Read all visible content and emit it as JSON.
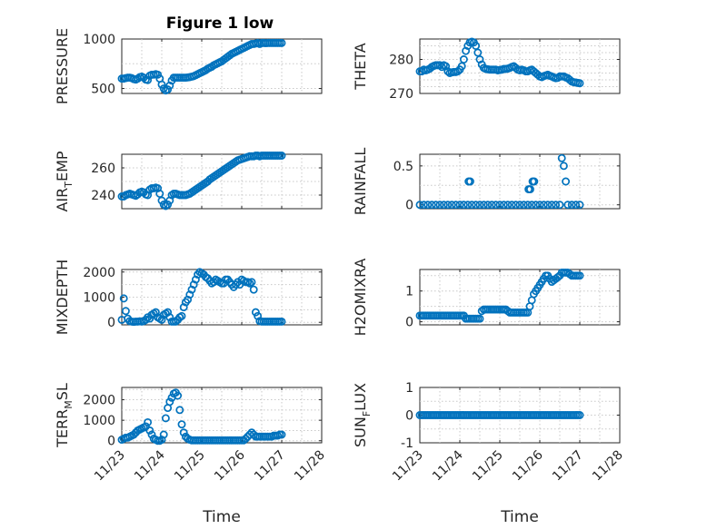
{
  "title": "Figure 1 low",
  "marker_color": "#0072BD",
  "chart_data": [
    {
      "type": "scatter",
      "ylabel": "PRESSURE",
      "title": "Figure 1 low",
      "ylim": [
        450,
        1000
      ],
      "yticks": [
        500,
        1000
      ],
      "ytick_labels": [
        "500",
        "1000"
      ],
      "grid": true,
      "x": [
        0.0,
        0.05,
        0.1,
        0.15,
        0.2,
        0.25,
        0.3,
        0.35,
        0.4,
        0.45,
        0.5,
        0.55,
        0.6,
        0.65,
        0.7,
        0.75,
        0.8,
        0.85,
        0.9,
        0.95,
        1.0,
        1.05,
        1.1,
        1.15,
        1.2,
        1.25,
        1.3,
        1.35,
        1.4,
        1.45,
        1.5,
        1.55,
        1.6,
        1.65,
        1.7,
        1.75,
        1.8,
        1.85,
        1.9,
        1.95,
        2.0,
        2.05,
        2.1,
        2.15,
        2.2,
        2.25,
        2.3,
        2.35,
        2.4,
        2.45,
        2.5,
        2.55,
        2.6,
        2.65,
        2.7,
        2.75,
        2.8,
        2.85,
        2.9,
        2.95,
        3.0,
        3.05,
        3.1,
        3.15,
        3.2,
        3.25,
        3.3,
        3.35,
        3.4,
        3.45,
        3.5,
        3.55,
        3.6,
        3.65,
        3.7,
        3.75,
        3.8,
        3.85,
        3.9,
        3.95,
        4.0
      ],
      "y": [
        600,
        600,
        605,
        610,
        610,
        605,
        595,
        590,
        600,
        615,
        620,
        610,
        590,
        585,
        630,
        640,
        640,
        645,
        640,
        600,
        540,
        500,
        480,
        490,
        530,
        580,
        610,
        610,
        610,
        610,
        610,
        610,
        610,
        612,
        615,
        620,
        625,
        635,
        645,
        655,
        665,
        675,
        685,
        700,
        710,
        720,
        735,
        745,
        755,
        765,
        775,
        790,
        805,
        820,
        835,
        850,
        860,
        870,
        880,
        890,
        900,
        910,
        920,
        930,
        940,
        950,
        950,
        955,
        960,
        950,
        960,
        960,
        958,
        960,
        960,
        960,
        960,
        960,
        960,
        960,
        960
      ]
    },
    {
      "type": "scatter",
      "ylabel": "THETA",
      "ylim": [
        270,
        286
      ],
      "yticks": [
        270,
        280
      ],
      "ytick_labels": [
        "270",
        "280"
      ],
      "grid": true,
      "x": [
        0.0,
        0.05,
        0.1,
        0.15,
        0.2,
        0.25,
        0.3,
        0.35,
        0.4,
        0.45,
        0.5,
        0.55,
        0.6,
        0.65,
        0.7,
        0.75,
        0.8,
        0.85,
        0.9,
        0.95,
        1.0,
        1.05,
        1.1,
        1.15,
        1.2,
        1.25,
        1.3,
        1.35,
        1.4,
        1.45,
        1.5,
        1.55,
        1.6,
        1.65,
        1.7,
        1.75,
        1.8,
        1.85,
        1.9,
        1.95,
        2.0,
        2.05,
        2.1,
        2.15,
        2.2,
        2.25,
        2.3,
        2.35,
        2.4,
        2.45,
        2.5,
        2.55,
        2.6,
        2.65,
        2.7,
        2.75,
        2.8,
        2.85,
        2.9,
        2.95,
        3.0,
        3.05,
        3.1,
        3.15,
        3.2,
        3.25,
        3.3,
        3.35,
        3.4,
        3.45,
        3.5,
        3.55,
        3.6,
        3.65,
        3.7,
        3.75,
        3.8,
        3.85,
        3.9,
        3.95,
        4.0
      ],
      "y": [
        276.5,
        276.5,
        277,
        276.8,
        277,
        277.3,
        277.8,
        278.1,
        278.3,
        278.3,
        278.3,
        277.8,
        278.3,
        278,
        276.5,
        276,
        276.2,
        276.3,
        276.3,
        276.5,
        277,
        278,
        280,
        282.5,
        284,
        285,
        285.2,
        285,
        284,
        282,
        280,
        278.5,
        277.5,
        277.2,
        277.1,
        277,
        277,
        277,
        277,
        276.8,
        276.9,
        277,
        277.2,
        277.2,
        277.3,
        277.5,
        277.8,
        278,
        277.5,
        277,
        276.8,
        277,
        276.8,
        276.5,
        276.5,
        276.8,
        277,
        276.5,
        276,
        275.5,
        275,
        274.8,
        275.1,
        275.3,
        275.5,
        275.2,
        275,
        274.7,
        274.5,
        274.6,
        275,
        275,
        275,
        274.7,
        274.5,
        274,
        273.5,
        273.3,
        273.2,
        273.1,
        273
      ]
    },
    {
      "type": "scatter",
      "ylabel": "AIR_TEMP",
      "ylabel_main": "AIR",
      "ylabel_sub": "T",
      "ylabel_rest": "EMP",
      "ylim": [
        230,
        270
      ],
      "yticks": [
        240,
        260
      ],
      "ytick_labels": [
        "240",
        "260"
      ],
      "grid": true,
      "x": [
        0.0,
        0.05,
        0.1,
        0.15,
        0.2,
        0.25,
        0.3,
        0.35,
        0.4,
        0.45,
        0.5,
        0.55,
        0.6,
        0.65,
        0.7,
        0.75,
        0.8,
        0.85,
        0.9,
        0.95,
        1.0,
        1.05,
        1.1,
        1.15,
        1.2,
        1.25,
        1.3,
        1.35,
        1.4,
        1.45,
        1.5,
        1.55,
        1.6,
        1.65,
        1.7,
        1.75,
        1.8,
        1.85,
        1.9,
        1.95,
        2.0,
        2.05,
        2.1,
        2.15,
        2.2,
        2.25,
        2.3,
        2.35,
        2.4,
        2.45,
        2.5,
        2.55,
        2.6,
        2.65,
        2.7,
        2.75,
        2.8,
        2.85,
        2.9,
        2.95,
        3.0,
        3.05,
        3.1,
        3.15,
        3.2,
        3.25,
        3.3,
        3.35,
        3.4,
        3.45,
        3.5,
        3.55,
        3.6,
        3.65,
        3.7,
        3.75,
        3.8,
        3.85,
        3.9,
        3.95,
        4.0
      ],
      "y": [
        239,
        239,
        240,
        240.5,
        241,
        240.5,
        240,
        239.5,
        240.5,
        242,
        242.5,
        242,
        240.5,
        240,
        244,
        245,
        245,
        245.5,
        245,
        241,
        236,
        233,
        232,
        233,
        236,
        240,
        241,
        241,
        240.5,
        240,
        240,
        240,
        240,
        240.5,
        241,
        242,
        243,
        244,
        245,
        246,
        247,
        248,
        249,
        250,
        251.5,
        252.5,
        253.5,
        254.5,
        255.5,
        256.5,
        257.5,
        258.5,
        259.5,
        260.5,
        261.5,
        262.5,
        263.5,
        264.5,
        265.5,
        266,
        266.5,
        267,
        267.5,
        268,
        268.5,
        268.5,
        268.5,
        269,
        269,
        268.5,
        269,
        269,
        269,
        269,
        269,
        269,
        269,
        269,
        269,
        269,
        269
      ]
    },
    {
      "type": "scatter",
      "ylabel": "RAINFALL",
      "ylim": [
        -0.05,
        0.65
      ],
      "yticks": [
        0,
        0.5
      ],
      "ytick_labels": [
        "0",
        "0.5"
      ],
      "grid": true,
      "x": [
        0.0,
        0.1,
        0.2,
        0.3,
        0.4,
        0.5,
        0.6,
        0.7,
        0.8,
        0.9,
        1.0,
        1.1,
        1.2,
        1.22,
        1.26,
        1.3,
        1.4,
        1.5,
        1.6,
        1.7,
        1.8,
        1.9,
        2.0,
        2.1,
        2.2,
        2.3,
        2.4,
        2.5,
        2.6,
        2.7,
        2.72,
        2.76,
        2.8,
        2.82,
        2.86,
        2.9,
        3.0,
        3.1,
        3.2,
        3.3,
        3.4,
        3.5,
        3.55,
        3.6,
        3.65,
        3.7,
        3.8,
        3.9,
        4.0
      ],
      "y": [
        0,
        0,
        0,
        0,
        0,
        0,
        0,
        0,
        0,
        0,
        0,
        0,
        0,
        0.3,
        0.3,
        0,
        0,
        0,
        0,
        0,
        0,
        0,
        0,
        0,
        0,
        0,
        0,
        0,
        0,
        0,
        0.2,
        0.2,
        0,
        0.3,
        0.3,
        0,
        0,
        0,
        0,
        0,
        0,
        0,
        0.6,
        0.5,
        0.3,
        0,
        0,
        0,
        0
      ]
    },
    {
      "type": "scatter",
      "ylabel": "MIXDEPTH",
      "ylim": [
        -100,
        2100
      ],
      "yticks": [
        0,
        1000,
        2000
      ],
      "ytick_labels": [
        "0",
        "1000",
        "2000"
      ],
      "grid": true,
      "x": [
        0.0,
        0.05,
        0.1,
        0.15,
        0.2,
        0.25,
        0.3,
        0.35,
        0.4,
        0.45,
        0.5,
        0.55,
        0.6,
        0.65,
        0.7,
        0.75,
        0.8,
        0.85,
        0.9,
        0.95,
        1.0,
        1.05,
        1.1,
        1.15,
        1.2,
        1.25,
        1.3,
        1.35,
        1.4,
        1.45,
        1.5,
        1.55,
        1.6,
        1.65,
        1.7,
        1.75,
        1.8,
        1.85,
        1.9,
        1.95,
        2.0,
        2.05,
        2.1,
        2.15,
        2.2,
        2.25,
        2.3,
        2.35,
        2.4,
        2.45,
        2.5,
        2.55,
        2.6,
        2.65,
        2.7,
        2.75,
        2.8,
        2.85,
        2.9,
        2.95,
        3.0,
        3.05,
        3.1,
        3.15,
        3.2,
        3.25,
        3.3,
        3.35,
        3.4,
        3.45,
        3.5,
        3.55,
        3.6,
        3.65,
        3.7,
        3.75,
        3.8,
        3.85,
        3.9,
        3.95,
        4.0
      ],
      "y": [
        100,
        950,
        450,
        150,
        50,
        30,
        20,
        30,
        30,
        40,
        30,
        50,
        100,
        200,
        150,
        300,
        350,
        400,
        200,
        150,
        100,
        300,
        350,
        400,
        200,
        30,
        30,
        30,
        100,
        200,
        250,
        600,
        800,
        900,
        1100,
        1300,
        1500,
        1700,
        1900,
        2000,
        1950,
        1900,
        1800,
        1750,
        1650,
        1550,
        1600,
        1700,
        1650,
        1600,
        1550,
        1550,
        1700,
        1700,
        1600,
        1500,
        1400,
        1500,
        1600,
        1500,
        1700,
        1650,
        1600,
        1600,
        1550,
        1600,
        1300,
        400,
        250,
        50,
        30,
        30,
        30,
        30,
        30,
        30,
        30,
        30,
        30,
        30,
        30
      ]
    },
    {
      "type": "scatter",
      "ylabel": "H2OMIXRA",
      "ylim": [
        -0.1,
        1.7
      ],
      "yticks": [
        0,
        1
      ],
      "ytick_labels": [
        "0",
        "1"
      ],
      "grid": true,
      "x": [
        0.0,
        0.05,
        0.1,
        0.15,
        0.2,
        0.25,
        0.3,
        0.35,
        0.4,
        0.45,
        0.5,
        0.55,
        0.6,
        0.65,
        0.7,
        0.75,
        0.8,
        0.85,
        0.9,
        0.95,
        1.0,
        1.05,
        1.1,
        1.15,
        1.2,
        1.25,
        1.3,
        1.35,
        1.4,
        1.45,
        1.5,
        1.55,
        1.6,
        1.65,
        1.7,
        1.75,
        1.8,
        1.85,
        1.9,
        1.95,
        2.0,
        2.05,
        2.1,
        2.15,
        2.2,
        2.25,
        2.3,
        2.35,
        2.4,
        2.45,
        2.5,
        2.55,
        2.6,
        2.65,
        2.7,
        2.75,
        2.8,
        2.85,
        2.9,
        2.95,
        3.0,
        3.05,
        3.1,
        3.15,
        3.2,
        3.25,
        3.3,
        3.35,
        3.4,
        3.45,
        3.5,
        3.55,
        3.6,
        3.65,
        3.7,
        3.75,
        3.8,
        3.85,
        3.9,
        3.95,
        4.0
      ],
      "y": [
        0.2,
        0.2,
        0.2,
        0.2,
        0.2,
        0.2,
        0.2,
        0.2,
        0.2,
        0.2,
        0.2,
        0.2,
        0.2,
        0.2,
        0.2,
        0.2,
        0.2,
        0.2,
        0.2,
        0.2,
        0.2,
        0.2,
        0.2,
        0.1,
        0.1,
        0.1,
        0.1,
        0.1,
        0.1,
        0.1,
        0.1,
        0.35,
        0.4,
        0.4,
        0.4,
        0.4,
        0.4,
        0.4,
        0.4,
        0.4,
        0.4,
        0.4,
        0.4,
        0.4,
        0.35,
        0.3,
        0.3,
        0.3,
        0.3,
        0.3,
        0.3,
        0.3,
        0.3,
        0.3,
        0.3,
        0.5,
        0.7,
        0.9,
        1.0,
        1.1,
        1.2,
        1.3,
        1.4,
        1.5,
        1.5,
        1.4,
        1.3,
        1.35,
        1.4,
        1.45,
        1.5,
        1.6,
        1.6,
        1.6,
        1.6,
        1.55,
        1.5,
        1.5,
        1.5,
        1.5,
        1.5
      ]
    },
    {
      "type": "scatter",
      "ylabel": "TERR_MSL",
      "ylabel_main": "TERR",
      "ylabel_sub": "M",
      "ylabel_rest": "SL",
      "ylim": [
        -100,
        2600
      ],
      "yticks": [
        0,
        1000,
        2000
      ],
      "ytick_labels": [
        "0",
        "1000",
        "2000"
      ],
      "grid": true,
      "x": [
        0.0,
        0.05,
        0.1,
        0.15,
        0.2,
        0.25,
        0.3,
        0.35,
        0.4,
        0.45,
        0.5,
        0.55,
        0.6,
        0.65,
        0.7,
        0.75,
        0.8,
        0.85,
        0.9,
        0.95,
        1.0,
        1.05,
        1.1,
        1.15,
        1.2,
        1.25,
        1.3,
        1.35,
        1.4,
        1.45,
        1.5,
        1.55,
        1.6,
        1.65,
        1.7,
        1.75,
        1.8,
        1.85,
        1.9,
        1.95,
        2.0,
        2.05,
        2.1,
        2.15,
        2.2,
        2.25,
        2.3,
        2.35,
        2.4,
        2.45,
        2.5,
        2.55,
        2.6,
        2.65,
        2.7,
        2.75,
        2.8,
        2.85,
        2.9,
        2.95,
        3.0,
        3.05,
        3.1,
        3.15,
        3.2,
        3.25,
        3.3,
        3.35,
        3.4,
        3.45,
        3.5,
        3.55,
        3.6,
        3.65,
        3.7,
        3.75,
        3.8,
        3.85,
        3.9,
        3.95,
        4.0
      ],
      "y": [
        50,
        100,
        150,
        150,
        200,
        250,
        300,
        400,
        500,
        550,
        600,
        650,
        700,
        900,
        500,
        300,
        100,
        50,
        0,
        0,
        50,
        300,
        1100,
        1600,
        1900,
        2100,
        2300,
        2350,
        2200,
        1500,
        800,
        400,
        200,
        100,
        50,
        20,
        20,
        20,
        20,
        20,
        20,
        20,
        20,
        20,
        20,
        20,
        20,
        20,
        20,
        20,
        20,
        20,
        20,
        20,
        20,
        20,
        20,
        20,
        20,
        20,
        20,
        20,
        100,
        200,
        300,
        400,
        300,
        200,
        200,
        200,
        200,
        200,
        200,
        200,
        200,
        200,
        250,
        250,
        250,
        300,
        300
      ]
    },
    {
      "type": "scatter",
      "ylabel": "SUN_FLUX",
      "ylabel_main": "SUN",
      "ylabel_sub": "F",
      "ylabel_rest": "LUX",
      "ylim": [
        -1,
        1
      ],
      "yticks": [
        -1,
        0,
        1
      ],
      "ytick_labels": [
        "-1",
        "0",
        "1"
      ],
      "grid": true,
      "x": [
        0.0,
        0.05,
        0.1,
        0.15,
        0.2,
        0.25,
        0.3,
        0.35,
        0.4,
        0.45,
        0.5,
        0.55,
        0.6,
        0.65,
        0.7,
        0.75,
        0.8,
        0.85,
        0.9,
        0.95,
        1.0,
        1.05,
        1.1,
        1.15,
        1.2,
        1.25,
        1.3,
        1.35,
        1.4,
        1.45,
        1.5,
        1.55,
        1.6,
        1.65,
        1.7,
        1.75,
        1.8,
        1.85,
        1.9,
        1.95,
        2.0,
        2.05,
        2.1,
        2.15,
        2.2,
        2.25,
        2.3,
        2.35,
        2.4,
        2.45,
        2.5,
        2.55,
        2.6,
        2.65,
        2.7,
        2.75,
        2.8,
        2.85,
        2.9,
        2.95,
        3.0,
        3.05,
        3.1,
        3.15,
        3.2,
        3.25,
        3.3,
        3.35,
        3.4,
        3.45,
        3.5,
        3.55,
        3.6,
        3.65,
        3.7,
        3.75,
        3.8,
        3.85,
        3.9,
        3.95,
        4.0
      ],
      "y": [
        0,
        0,
        0,
        0,
        0,
        0,
        0,
        0,
        0,
        0,
        0,
        0,
        0,
        0,
        0,
        0,
        0,
        0,
        0,
        0,
        0,
        0,
        0,
        0,
        0,
        0,
        0,
        0,
        0,
        0,
        0,
        0,
        0,
        0,
        0,
        0,
        0,
        0,
        0,
        0,
        0,
        0,
        0,
        0,
        0,
        0,
        0,
        0,
        0,
        0,
        0,
        0,
        0,
        0,
        0,
        0,
        0,
        0,
        0,
        0,
        0,
        0,
        0,
        0,
        0,
        0,
        0,
        0,
        0,
        0,
        0,
        0,
        0,
        0,
        0,
        0,
        0,
        0,
        0,
        0,
        0
      ]
    }
  ],
  "xaxis": {
    "tick_labels": [
      "11/23",
      "11/24",
      "11/25",
      "11/26",
      "11/27",
      "11/28"
    ],
    "tick_values": [
      0,
      1,
      2,
      3,
      4,
      5
    ],
    "xlim": [
      0,
      5
    ],
    "label": "Time"
  }
}
